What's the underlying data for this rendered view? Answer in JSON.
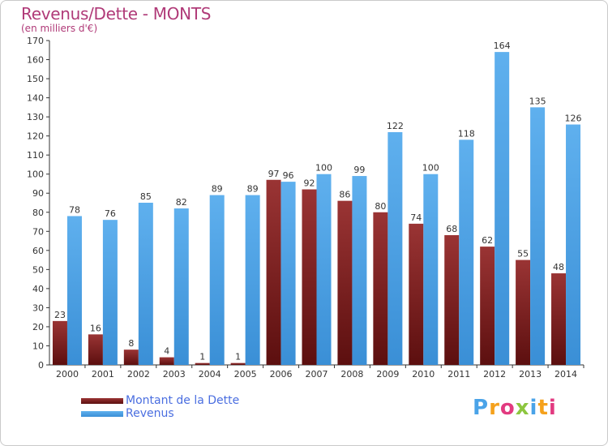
{
  "title": "Revenus/Dette - MONTS",
  "subtitle": "(en milliers d'€)",
  "logo": {
    "text": "Proxiti",
    "letter_colors": [
      "#4aa3e8",
      "#f5a11c",
      "#e23a80",
      "#8dc63f",
      "#4aa3e8",
      "#f5a11c",
      "#e23a80"
    ]
  },
  "legend": [
    {
      "label": "Montant de la Dette",
      "color": "#7a1f1f"
    },
    {
      "label": "Revenus",
      "color": "#4a9fe3"
    }
  ],
  "chart_data": {
    "type": "bar",
    "title": "Revenus/Dette - MONTS",
    "subtitle": "(en milliers d'€)",
    "categories": [
      "2000",
      "2001",
      "2002",
      "2003",
      "2004",
      "2005",
      "2006",
      "2007",
      "2008",
      "2009",
      "2010",
      "2011",
      "2012",
      "2013",
      "2014"
    ],
    "series": [
      {
        "name": "Montant de la Dette",
        "color": "#7a1f1f",
        "values": [
          23,
          16,
          8,
          4,
          1,
          1,
          97,
          92,
          86,
          80,
          74,
          68,
          62,
          55,
          48
        ]
      },
      {
        "name": "Revenus",
        "color": "#4a9fe3",
        "values": [
          78,
          76,
          85,
          82,
          89,
          89,
          96,
          100,
          99,
          122,
          100,
          118,
          164,
          135,
          126
        ]
      }
    ],
    "ylim": [
      0,
      170
    ],
    "ytick_step": 10,
    "grid": false,
    "legend_position": "bottom-left"
  }
}
